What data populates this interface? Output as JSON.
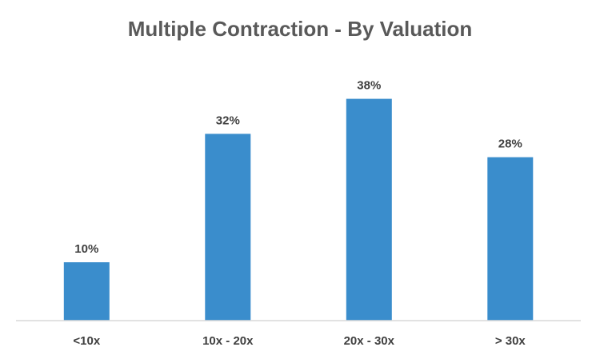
{
  "chart_data": {
    "type": "bar",
    "title": "Multiple Contraction - By Valuation",
    "categories": [
      "<10x",
      "10x - 20x",
      "20x - 30x",
      "> 30x"
    ],
    "values": [
      10,
      32,
      38,
      28
    ],
    "data_labels": [
      "10%",
      "32%",
      "38%",
      "28%"
    ],
    "xlabel": "",
    "ylabel": "",
    "ylim": [
      0,
      50
    ],
    "grid": false,
    "legend": "none",
    "bar_color": "#3A8DCC",
    "axis_color": "#D9D9D9"
  }
}
